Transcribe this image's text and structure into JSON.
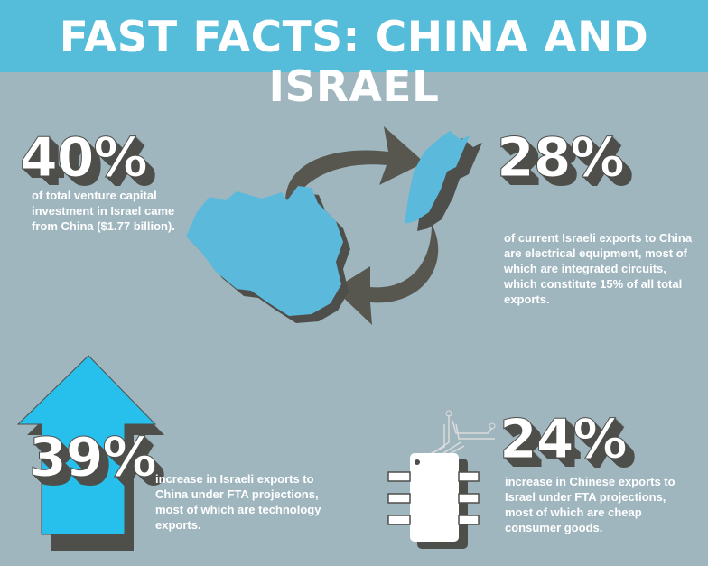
{
  "header": {
    "title": "FAST FACTS: CHINA AND ISRAEL"
  },
  "colors": {
    "header": "#55bcd9",
    "background": "#9fb6bf",
    "map_blue": "#5bb9dc",
    "arrow_blue": "#27bfec",
    "shadow": "#4e4f4a"
  },
  "facts": [
    {
      "value": "40%",
      "text": "of total venture capital investment in Israel came from China ($1.77 billion).",
      "icon": "china-map-icon"
    },
    {
      "value": "28%",
      "text": "of current Israeli exports to China are electrical equipment, most of which are integrated circuits, which constitute 15% of all total exports.",
      "icon": "israel-map-icon"
    },
    {
      "value": "39%",
      "text": "increase in Israeli exports to China under FTA projections, most of which are technology exports.",
      "icon": "up-arrow-icon"
    },
    {
      "value": "24%",
      "text": "increase in Chinese exports to Israel under FTA projections, most of which are cheap consumer goods.",
      "icon": "microchip-icon"
    }
  ]
}
